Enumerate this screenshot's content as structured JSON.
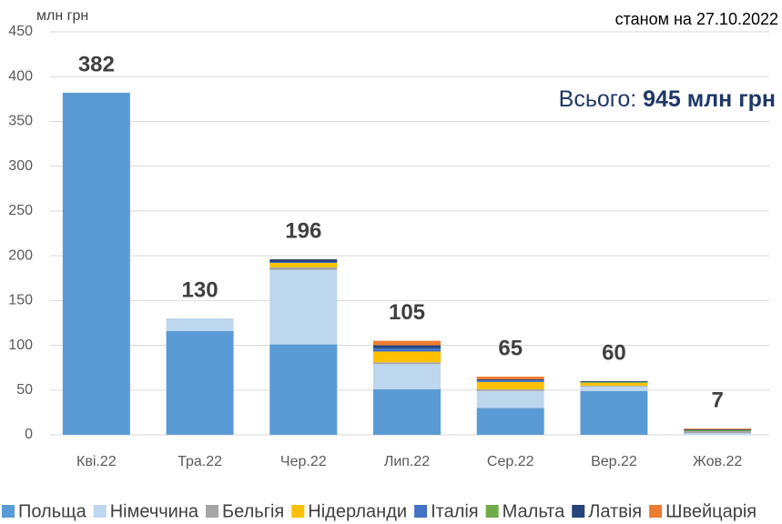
{
  "chart_data": {
    "type": "stacked_bar",
    "subtitle": "станом на 27.10.2022",
    "y_label": "млн грн",
    "annotation": {
      "prefix": "Всього: ",
      "total": "945 млн грн"
    },
    "categories": [
      "Кві.22",
      "Тра.22",
      "Чер.22",
      "Лип.22",
      "Сер.22",
      "Вер.22",
      "Жов.22"
    ],
    "totals": [
      382,
      130,
      196,
      105,
      65,
      60,
      7
    ],
    "series": [
      {
        "name": "Польща",
        "color": "#5b9bd5",
        "values": [
          382,
          116,
          101,
          51,
          30,
          49,
          0
        ]
      },
      {
        "name": "Німеччина",
        "color": "#bdd7ee",
        "values": [
          0,
          14,
          83,
          28,
          19,
          5,
          2
        ]
      },
      {
        "name": "Бельгія",
        "color": "#a5a5a5",
        "values": [
          0,
          0,
          3,
          2,
          2,
          1,
          2
        ]
      },
      {
        "name": "Нідерланди",
        "color": "#ffc000",
        "values": [
          0,
          0,
          5,
          12,
          8,
          3,
          0
        ]
      },
      {
        "name": "Італія",
        "color": "#4472c4",
        "values": [
          0,
          0,
          1,
          4,
          2,
          0,
          0
        ]
      },
      {
        "name": "Мальта",
        "color": "#70ad47",
        "values": [
          0,
          0,
          0,
          0,
          0,
          1,
          1
        ]
      },
      {
        "name": "Латвія",
        "color": "#264478",
        "values": [
          0,
          0,
          3,
          3,
          1,
          1,
          1
        ]
      },
      {
        "name": "Швейцарія",
        "color": "#ed7d31",
        "values": [
          0,
          0,
          0,
          5,
          3,
          0,
          1
        ]
      }
    ],
    "ylim": [
      0,
      450
    ],
    "yticks": [
      0,
      50,
      100,
      150,
      200,
      250,
      300,
      350,
      400,
      450
    ],
    "grid": true
  }
}
